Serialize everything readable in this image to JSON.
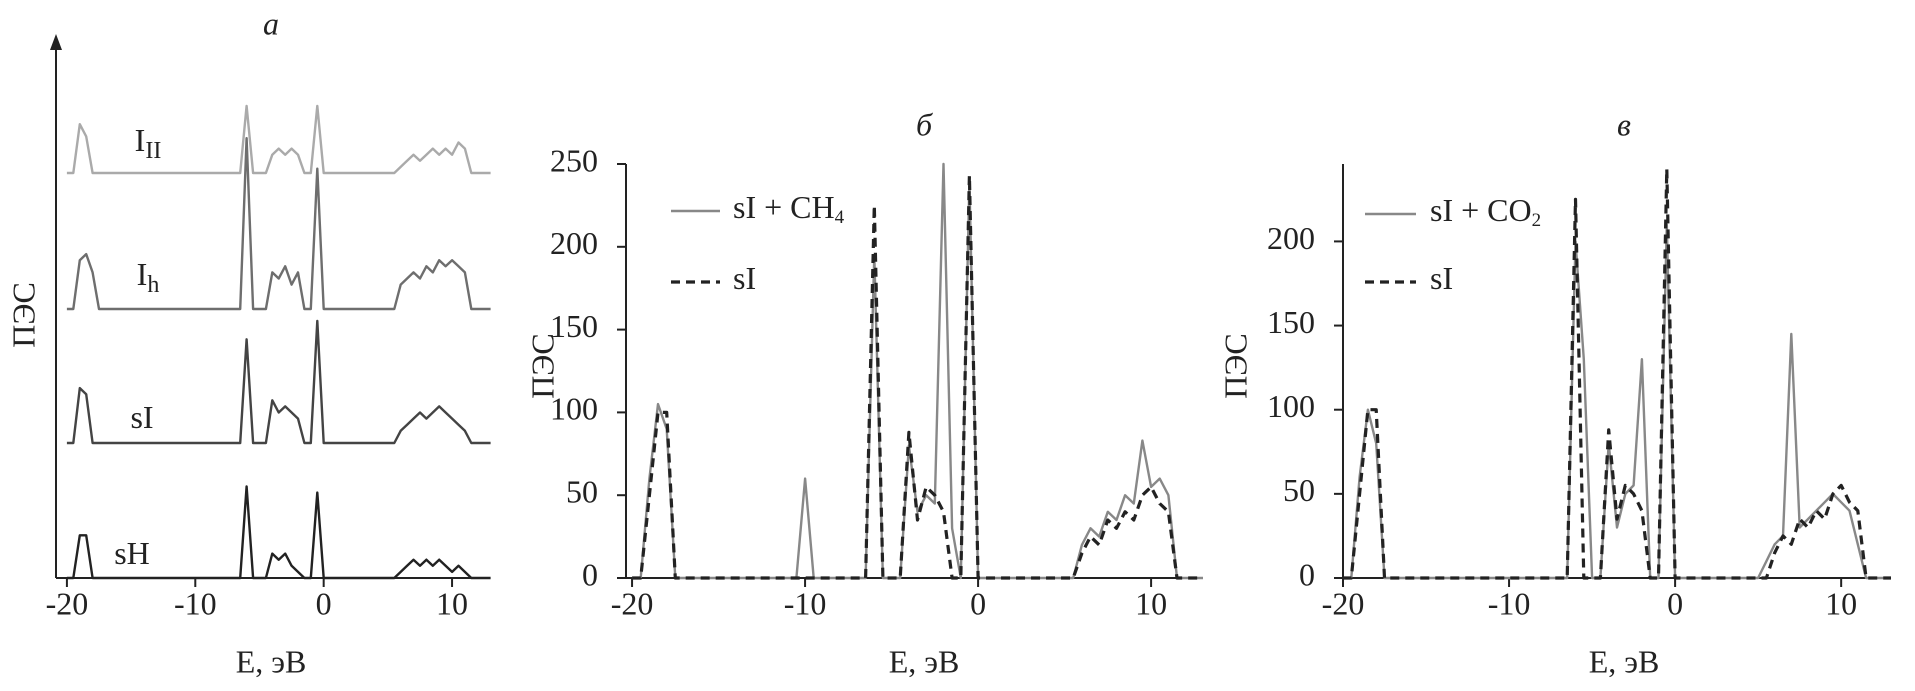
{
  "chart_data": [
    {
      "type": "line",
      "title": "а",
      "xlabel": "E, эВ",
      "ylabel": "ПЭС",
      "x": [
        -20,
        -19.5,
        -19,
        -18.5,
        -18,
        -17.5,
        -17,
        -16.5,
        -16,
        -15.5,
        -15,
        -14.5,
        -14,
        -13.5,
        -13,
        -12.5,
        -12,
        -11.5,
        -11,
        -10.5,
        -10,
        -9.5,
        -9,
        -8.5,
        -8,
        -7.5,
        -7,
        -6.5,
        -6,
        -5.5,
        -5,
        -4.5,
        -4,
        -3.5,
        -3,
        -2.5,
        -2,
        -1.5,
        -1,
        -0.5,
        0,
        0.5,
        1,
        1.5,
        2,
        2.5,
        3,
        3.5,
        4,
        4.5,
        5,
        5.5,
        6,
        6.5,
        7,
        7.5,
        8,
        8.5,
        9,
        9.5,
        10,
        10.5,
        11,
        11.5,
        12,
        12.5,
        13
      ],
      "xlim": [
        -20.85,
        12.8
      ],
      "xticks": [
        -20,
        -10,
        0,
        10
      ],
      "series": [
        {
          "name": "I",
          "subscript": "II",
          "color": "#aaaaaa",
          "values": [
            0,
            0,
            40,
            30,
            0,
            0,
            0,
            0,
            0,
            0,
            0,
            0,
            0,
            0,
            0,
            0,
            0,
            0,
            0,
            0,
            0,
            0,
            0,
            0,
            0,
            0,
            0,
            0,
            55,
            0,
            0,
            0,
            15,
            20,
            15,
            20,
            15,
            0,
            0,
            55,
            0,
            0,
            0,
            0,
            0,
            0,
            0,
            0,
            0,
            0,
            0,
            0,
            5,
            10,
            15,
            10,
            15,
            20,
            15,
            20,
            15,
            25,
            20,
            0,
            0,
            0,
            0
          ]
        },
        {
          "name": "I",
          "subscript": "h",
          "color": "#6e6e6e",
          "values": [
            0,
            0,
            40,
            45,
            30,
            0,
            0,
            0,
            0,
            0,
            0,
            0,
            0,
            0,
            0,
            0,
            0,
            0,
            0,
            0,
            0,
            0,
            0,
            0,
            0,
            0,
            0,
            0,
            140,
            0,
            0,
            0,
            30,
            25,
            35,
            20,
            30,
            0,
            0,
            115,
            0,
            0,
            0,
            0,
            0,
            0,
            0,
            0,
            0,
            0,
            0,
            0,
            20,
            25,
            30,
            25,
            35,
            30,
            40,
            35,
            40,
            35,
            30,
            0,
            0,
            0,
            0
          ]
        },
        {
          "name": "sI",
          "color": "#444444",
          "values": [
            0,
            0,
            45,
            40,
            0,
            0,
            0,
            0,
            0,
            0,
            0,
            0,
            0,
            0,
            0,
            0,
            0,
            0,
            0,
            0,
            0,
            0,
            0,
            0,
            0,
            0,
            0,
            0,
            85,
            0,
            0,
            0,
            35,
            25,
            30,
            25,
            20,
            0,
            0,
            100,
            0,
            0,
            0,
            0,
            0,
            0,
            0,
            0,
            0,
            0,
            0,
            0,
            10,
            15,
            20,
            25,
            20,
            25,
            30,
            25,
            20,
            15,
            10,
            0,
            0,
            0,
            0
          ]
        },
        {
          "name": "sH",
          "color": "#222222",
          "values": [
            0,
            0,
            35,
            35,
            0,
            0,
            0,
            0,
            0,
            0,
            0,
            0,
            0,
            0,
            0,
            0,
            0,
            0,
            0,
            0,
            0,
            0,
            0,
            0,
            0,
            0,
            0,
            0,
            75,
            0,
            0,
            0,
            20,
            15,
            20,
            10,
            5,
            0,
            0,
            70,
            0,
            0,
            0,
            0,
            0,
            0,
            0,
            0,
            0,
            0,
            0,
            0,
            5,
            10,
            15,
            10,
            15,
            10,
            15,
            10,
            5,
            10,
            5,
            0,
            0,
            0,
            0
          ]
        }
      ]
    },
    {
      "type": "line",
      "title": "б",
      "xlabel": "E, эВ",
      "ylabel": "ПЭС",
      "x": [
        -20,
        -19.5,
        -19,
        -18.5,
        -18,
        -17.5,
        -17,
        -16.5,
        -16,
        -15.5,
        -15,
        -14.5,
        -14,
        -13.5,
        -13,
        -12.5,
        -12,
        -11.5,
        -11,
        -10.5,
        -10,
        -9.5,
        -9,
        -8.5,
        -8,
        -7.5,
        -7,
        -6.5,
        -6,
        -5.5,
        -5,
        -4.5,
        -4,
        -3.5,
        -3,
        -2.5,
        -2,
        -1.5,
        -1,
        -0.5,
        0,
        0.5,
        1,
        1.5,
        2,
        2.5,
        3,
        3.5,
        4,
        4.5,
        5,
        5.5,
        6,
        6.5,
        7,
        7.5,
        8,
        8.5,
        9,
        9.5,
        10,
        10.5,
        11,
        11.5,
        12,
        12.5,
        13
      ],
      "xlim": [
        -20.35,
        13
      ],
      "xticks": [
        -20,
        -10,
        0,
        10
      ],
      "ylim": [
        0,
        250
      ],
      "yticks": [
        0,
        50,
        100,
        150,
        200,
        250
      ],
      "series": [
        {
          "name": "sI + CH",
          "subscript": "4",
          "color": "#888888",
          "values": [
            0,
            0,
            60,
            105,
            90,
            0,
            0,
            0,
            0,
            0,
            0,
            0,
            0,
            0,
            0,
            0,
            0,
            0,
            0,
            0,
            60,
            0,
            0,
            0,
            0,
            0,
            0,
            0,
            195,
            0,
            0,
            0,
            80,
            40,
            50,
            45,
            250,
            30,
            0,
            240,
            0,
            0,
            0,
            0,
            0,
            0,
            0,
            0,
            0,
            0,
            0,
            0,
            20,
            30,
            25,
            40,
            35,
            50,
            45,
            83,
            55,
            60,
            50,
            0,
            0,
            0,
            0
          ]
        },
        {
          "name": "sI",
          "color": "#222222",
          "dashed": true,
          "values": [
            0,
            0,
            50,
            100,
            100,
            0,
            0,
            0,
            0,
            0,
            0,
            0,
            0,
            0,
            0,
            0,
            0,
            0,
            0,
            0,
            0,
            0,
            0,
            0,
            0,
            0,
            0,
            0,
            225,
            0,
            0,
            0,
            88,
            35,
            55,
            50,
            40,
            0,
            0,
            243,
            0,
            0,
            0,
            0,
            0,
            0,
            0,
            0,
            0,
            0,
            0,
            0,
            15,
            25,
            20,
            35,
            30,
            40,
            35,
            50,
            55,
            45,
            40,
            0,
            0,
            0,
            0
          ]
        }
      ]
    },
    {
      "type": "line",
      "title": "в",
      "xlabel": "E, эВ",
      "ylabel": "ПЭС",
      "x": [
        -20,
        -19.5,
        -19,
        -18.5,
        -18,
        -17.5,
        -17,
        -16.5,
        -16,
        -15.5,
        -15,
        -14.5,
        -14,
        -13.5,
        -13,
        -12.5,
        -12,
        -11.5,
        -11,
        -10.5,
        -10,
        -9.5,
        -9,
        -8.5,
        -8,
        -7.5,
        -7,
        -6.5,
        -6,
        -5.5,
        -5,
        -4.5,
        -4,
        -3.5,
        -3,
        -2.5,
        -2,
        -1.5,
        -1,
        -0.5,
        0,
        0.5,
        1,
        1.5,
        2,
        2.5,
        3,
        3.5,
        4,
        4.5,
        5,
        5.5,
        6,
        6.5,
        7,
        7.5,
        8,
        8.5,
        9,
        9.5,
        10,
        10.5,
        11,
        11.5,
        12,
        12.5,
        13
      ],
      "xlim": [
        -20,
        12.7
      ],
      "xticks": [
        -20,
        -10,
        0,
        10
      ],
      "ylim": [
        0,
        246
      ],
      "yticks": [
        0,
        50,
        100,
        150,
        200
      ],
      "series": [
        {
          "name": "sI + CO",
          "subscript": "2",
          "color": "#888888",
          "values": [
            0,
            0,
            60,
            100,
            80,
            0,
            0,
            0,
            0,
            0,
            0,
            0,
            0,
            0,
            0,
            0,
            0,
            0,
            0,
            0,
            0,
            0,
            0,
            0,
            0,
            0,
            0,
            0,
            200,
            130,
            0,
            0,
            80,
            30,
            50,
            55,
            130,
            0,
            0,
            210,
            0,
            0,
            0,
            0,
            0,
            0,
            0,
            0,
            0,
            0,
            0,
            10,
            20,
            25,
            145,
            30,
            35,
            40,
            45,
            50,
            45,
            40,
            20,
            0,
            0,
            0,
            0
          ]
        },
        {
          "name": "sI",
          "color": "#222222",
          "dashed": true,
          "values": [
            0,
            0,
            50,
            100,
            100,
            0,
            0,
            0,
            0,
            0,
            0,
            0,
            0,
            0,
            0,
            0,
            0,
            0,
            0,
            0,
            0,
            0,
            0,
            0,
            0,
            0,
            0,
            0,
            225,
            0,
            0,
            0,
            88,
            35,
            55,
            50,
            40,
            0,
            0,
            243,
            0,
            0,
            0,
            0,
            0,
            0,
            0,
            0,
            0,
            0,
            0,
            0,
            15,
            25,
            20,
            35,
            30,
            40,
            35,
            50,
            55,
            45,
            40,
            0,
            0,
            0,
            0
          ]
        }
      ]
    }
  ]
}
